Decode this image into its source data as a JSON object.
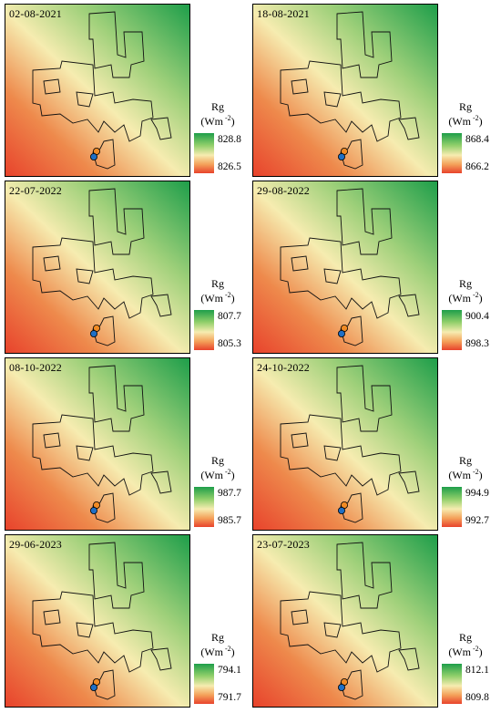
{
  "legend": {
    "symbol": "Rg",
    "unit_prefix": "(Wm",
    "unit_exp": "-2",
    "unit_suffix": ")"
  },
  "panels": [
    {
      "date": "02-08-2021",
      "max": "828.8",
      "min": "826.5"
    },
    {
      "date": "18-08-2021",
      "max": "868.4",
      "min": "866.2"
    },
    {
      "date": "22-07-2022",
      "max": "807.7",
      "min": "805.3"
    },
    {
      "date": "29-08-2022",
      "max": "900.4",
      "min": "898.3"
    },
    {
      "date": "08-10-2022",
      "max": "987.7",
      "min": "985.7"
    },
    {
      "date": "24-10-2022",
      "max": "994.9",
      "min": "992.7"
    },
    {
      "date": "29-06-2023",
      "max": "794.1",
      "min": "791.7"
    },
    {
      "date": "23-07-2023",
      "max": "812.1",
      "min": "809.8"
    }
  ],
  "colors": {
    "high": "#1e9e4a",
    "mid": "#f6ecb0",
    "low": "#e8432c",
    "marker_blue": "#1f6fc5",
    "marker_orange": "#f08a24"
  }
}
